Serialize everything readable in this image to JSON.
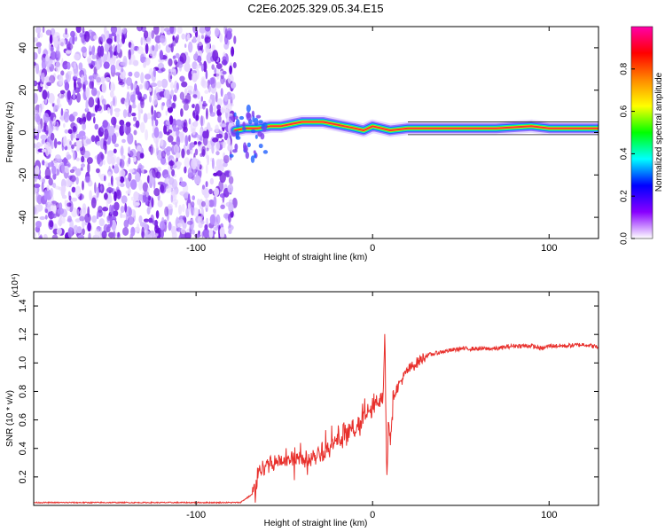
{
  "title": "C2E6.2025.329.05.34.E15",
  "chart_data": [
    {
      "type": "heatmap",
      "xlabel": "Height of straight line (km)",
      "ylabel": "Frequency (Hz)",
      "xlim": [
        -192,
        128
      ],
      "ylim": [
        -50,
        50
      ],
      "xticks": [
        -100,
        0,
        100
      ],
      "yticks": [
        -40,
        -20,
        0,
        20,
        40
      ],
      "xtick_labels": [
        "-100",
        "0",
        "100"
      ],
      "ytick_labels": [
        "-40",
        "-20",
        "0",
        "20",
        "40"
      ],
      "noise_region_x": [
        -192,
        -78
      ],
      "ridge": {
        "x": [
          -78,
          -72,
          -65,
          -58,
          -52,
          -46,
          -40,
          -34,
          -28,
          -22,
          -16,
          -10,
          -5,
          0,
          5,
          10,
          20,
          30,
          50,
          70,
          90,
          100,
          110,
          128
        ],
        "y": [
          1,
          2,
          2,
          3,
          3,
          4,
          5,
          5,
          5,
          4,
          3,
          2,
          1,
          3,
          2,
          1,
          2,
          2,
          2,
          2,
          3,
          2,
          2,
          2
        ]
      },
      "colorbar": {
        "label": "Normalized spectral amplitude",
        "range": [
          0,
          1
        ],
        "ticks": [
          0.0,
          0.2,
          0.4,
          0.6,
          0.8
        ],
        "tick_labels": [
          "0.0",
          "0.2",
          "0.4",
          "0.6",
          "0.8"
        ],
        "colors": [
          "#ffffff",
          "#8800ff",
          "#0000ff",
          "#00ffff",
          "#00ff00",
          "#ffff00",
          "#ff8800",
          "#ff0000",
          "#ff00aa"
        ]
      }
    },
    {
      "type": "line",
      "xlabel": "Height of straight line (km)",
      "ylabel": "SNR (10 * v/v)",
      "scale_label": "(x10⁴)",
      "xlim": [
        -192,
        128
      ],
      "ylim": [
        0,
        1.5
      ],
      "xticks": [
        -100,
        0,
        100
      ],
      "yticks": [
        0.2,
        0.4,
        0.6,
        0.8,
        1.0,
        1.2,
        1.4
      ],
      "xtick_labels": [
        "-100",
        "0",
        "100"
      ],
      "ytick_labels": [
        "0.2",
        "0.4",
        "0.6",
        "0.8",
        "1.0",
        "1.2",
        "1.4"
      ],
      "color": "#e8302c",
      "series": [
        {
          "name": "SNR",
          "x": [
            -192,
            -150,
            -100,
            -75,
            -68,
            -64,
            -60,
            -55,
            -50,
            -45,
            -40,
            -35,
            -30,
            -25,
            -20,
            -15,
            -10,
            -5,
            0,
            3,
            6,
            7,
            8,
            9,
            10,
            12,
            15,
            20,
            25,
            30,
            40,
            50,
            60,
            70,
            80,
            90,
            96,
            100,
            110,
            120,
            128
          ],
          "y": [
            0.02,
            0.02,
            0.02,
            0.02,
            0.08,
            0.25,
            0.3,
            0.3,
            0.32,
            0.33,
            0.33,
            0.34,
            0.38,
            0.4,
            0.45,
            0.5,
            0.55,
            0.62,
            0.68,
            0.72,
            0.78,
            1.25,
            0.15,
            0.6,
            0.5,
            0.78,
            0.85,
            0.95,
            1.0,
            1.05,
            1.08,
            1.1,
            1.1,
            1.1,
            1.12,
            1.12,
            1.1,
            1.12,
            1.12,
            1.13,
            1.11
          ]
        }
      ]
    }
  ]
}
